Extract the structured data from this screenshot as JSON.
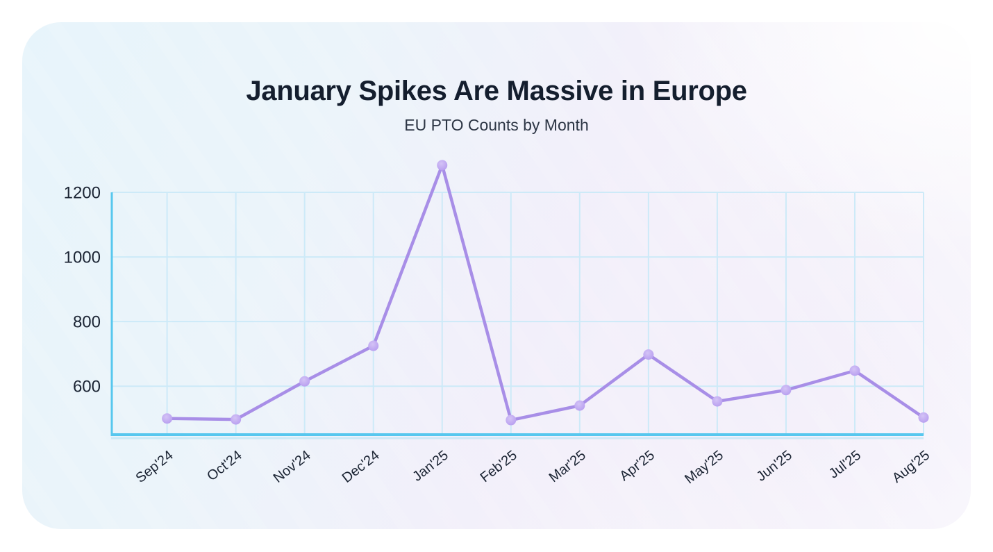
{
  "header": {
    "title": "January Spikes Are Massive in Europe",
    "subtitle": "EU PTO Counts by Month"
  },
  "chart_data": {
    "type": "line",
    "title": "January Spikes Are Massive in Europe",
    "subtitle": "EU PTO Counts by Month",
    "categories": [
      "Sep'24",
      "Oct'24",
      "Nov'24",
      "Dec'24",
      "Jan'25",
      "Feb'25",
      "Mar'25",
      "Apr'25",
      "May'25",
      "Jun'25",
      "Jul'25",
      "Aug'25"
    ],
    "series": [
      {
        "name": "EU PTO count",
        "values": [
          500,
          497,
          615,
          725,
          1284,
          495,
          540,
          698,
          553,
          588,
          648,
          503
        ]
      }
    ],
    "xlabel": "",
    "ylabel": "",
    "ylim": [
      450,
      1200
    ],
    "yticks": [
      600,
      800,
      1000,
      1200
    ],
    "grid": true,
    "legend_position": "none",
    "x_tick_rotation_deg": -38,
    "series_overflows_top_gridline": true,
    "colors": {
      "line": "#a88ee7",
      "marker_center": "#d4c3f6",
      "marker_edge": "#b59bef",
      "axis": "#57c7ee",
      "axis_glow": "#b0e2f5",
      "gridline": "#cdeaf8",
      "tick_text": "#1b2433",
      "title_text": "#141e2e",
      "subtitle_text": "#2d3645"
    }
  }
}
